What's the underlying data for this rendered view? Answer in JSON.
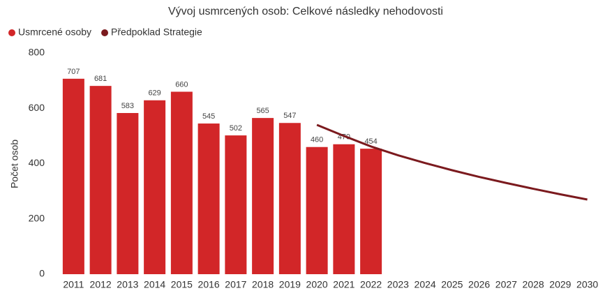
{
  "chart_data": {
    "type": "bar",
    "title": "Vývoj usmrcených osob: Celkové následky nehodovosti",
    "y_label": "Počet osob",
    "categories": [
      "2011",
      "2012",
      "2013",
      "2014",
      "2015",
      "2016",
      "2017",
      "2018",
      "2019",
      "2020",
      "2021",
      "2022",
      "2023",
      "2024",
      "2025",
      "2026",
      "2027",
      "2028",
      "2029",
      "2030"
    ],
    "series": [
      {
        "name": "Usmrcené osoby",
        "type": "bar",
        "color": "#d22628",
        "values": [
          707,
          681,
          583,
          629,
          660,
          545,
          502,
          565,
          547,
          460,
          470,
          454,
          null,
          null,
          null,
          null,
          null,
          null,
          null,
          null
        ]
      },
      {
        "name": "Předpoklad Strategie",
        "type": "line",
        "color": "#7b1a1e",
        "values": [
          null,
          null,
          null,
          null,
          null,
          null,
          null,
          null,
          null,
          540,
          500,
          462,
          430,
          402,
          376,
          352,
          330,
          309,
          289,
          270
        ]
      }
    ],
    "ylim": [
      0,
      800
    ],
    "yticks": [
      0,
      200,
      400,
      600,
      800
    ],
    "grid": false,
    "legend": "top-left"
  }
}
